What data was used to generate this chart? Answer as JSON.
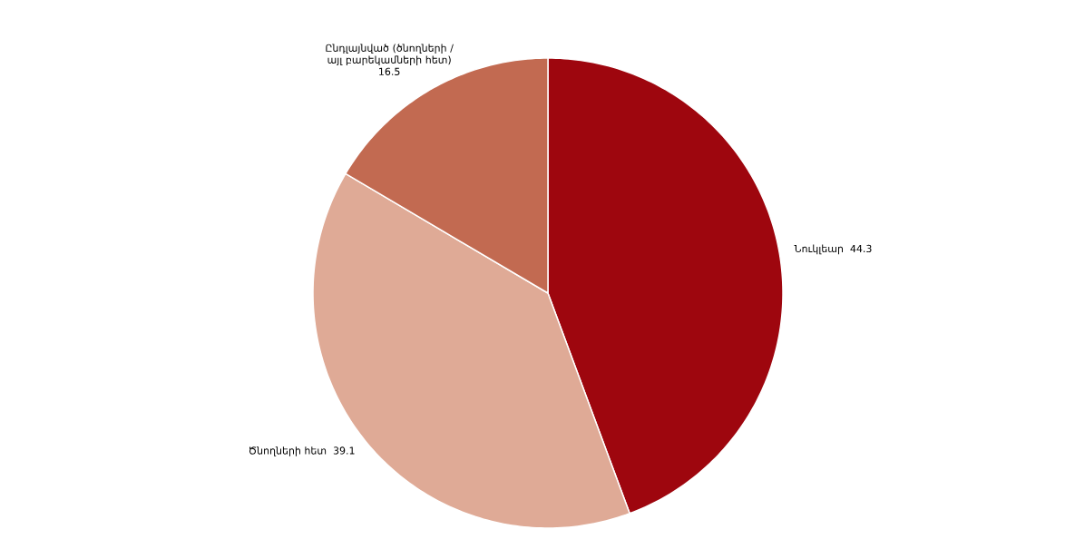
{
  "chart_data": {
    "type": "pie",
    "categories": [
      "Նուկլեար",
      "Ծնողների հետ",
      "Ընդլայնված (ծնողների / այլ բարեկամների հետ)"
    ],
    "values": [
      44.3,
      39.1,
      16.5
    ],
    "colors": [
      "#9e060e",
      "#dfaa96",
      "#c26a51"
    ],
    "data_labels": true
  }
}
